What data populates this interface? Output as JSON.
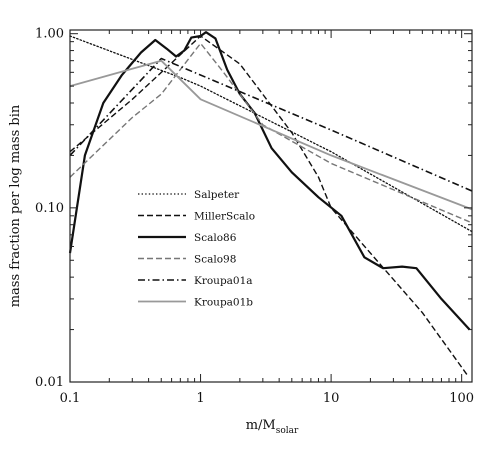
{
  "chart_data": {
    "type": "line",
    "xscale": "log",
    "yscale": "log",
    "xlim": [
      0.1,
      120
    ],
    "ylim": [
      0.01,
      1.05
    ],
    "xlabel": "m/M",
    "xlabel_sub": "solar",
    "ylabel": "mass fraction per log mass bin",
    "x_tick_labels": [
      "0.1",
      "1",
      "10",
      "100"
    ],
    "x_tick_values": [
      0.1,
      1,
      10,
      100
    ],
    "y_tick_labels": [
      "0.01",
      "0.10",
      "1.00"
    ],
    "y_tick_values": [
      0.01,
      0.1,
      1.0
    ],
    "grid": false,
    "legend_position": "lower-left",
    "series": [
      {
        "name": "Salpeter",
        "style": "dotted",
        "color": "#111111",
        "width": 1.3,
        "points": [
          [
            0.1,
            0.97
          ],
          [
            0.7,
            0.56
          ],
          [
            1,
            0.5
          ],
          [
            10,
            0.21
          ],
          [
            120,
            0.073
          ]
        ]
      },
      {
        "name": "MillerScalo",
        "style": "dashed",
        "color": "#111111",
        "width": 1.4,
        "points": [
          [
            0.1,
            0.21
          ],
          [
            0.3,
            0.42
          ],
          [
            1,
            0.97
          ],
          [
            2,
            0.67
          ],
          [
            5,
            0.27
          ],
          [
            8,
            0.15
          ],
          [
            10,
            0.1
          ],
          [
            20,
            0.055
          ],
          [
            50,
            0.025
          ],
          [
            110,
            0.011
          ]
        ]
      },
      {
        "name": "Scalo86",
        "style": "solid",
        "color": "#111111",
        "width": 2.2,
        "points": [
          [
            0.1,
            0.055
          ],
          [
            0.13,
            0.2
          ],
          [
            0.18,
            0.4
          ],
          [
            0.25,
            0.58
          ],
          [
            0.35,
            0.78
          ],
          [
            0.45,
            0.92
          ],
          [
            0.55,
            0.82
          ],
          [
            0.65,
            0.74
          ],
          [
            0.75,
            0.8
          ],
          [
            0.85,
            0.95
          ],
          [
            1.0,
            0.97
          ],
          [
            1.1,
            1.02
          ],
          [
            1.3,
            0.94
          ],
          [
            1.6,
            0.62
          ],
          [
            2.0,
            0.45
          ],
          [
            2.6,
            0.35
          ],
          [
            3.5,
            0.22
          ],
          [
            5,
            0.16
          ],
          [
            8,
            0.115
          ],
          [
            12,
            0.09
          ],
          [
            18,
            0.052
          ],
          [
            25,
            0.045
          ],
          [
            35,
            0.046
          ],
          [
            45,
            0.045
          ],
          [
            70,
            0.03
          ],
          [
            115,
            0.02
          ]
        ]
      },
      {
        "name": "Scalo98",
        "style": "dashed",
        "color": "#777777",
        "width": 1.4,
        "points": [
          [
            0.1,
            0.15
          ],
          [
            0.3,
            0.33
          ],
          [
            0.5,
            0.45
          ],
          [
            1,
            0.88
          ],
          [
            1.5,
            0.6
          ],
          [
            3,
            0.3
          ],
          [
            10,
            0.18
          ],
          [
            120,
            0.082
          ]
        ]
      },
      {
        "name": "Kroupa01a",
        "style": "dashdot",
        "color": "#111111",
        "width": 1.6,
        "points": [
          [
            0.1,
            0.2
          ],
          [
            0.5,
            0.72
          ],
          [
            10,
            0.28
          ],
          [
            120,
            0.125
          ]
        ]
      },
      {
        "name": "Kroupa01b",
        "style": "solid",
        "color": "#999999",
        "width": 1.8,
        "points": [
          [
            0.1,
            0.5
          ],
          [
            0.5,
            0.7
          ],
          [
            1,
            0.42
          ],
          [
            10,
            0.2
          ],
          [
            120,
            0.098
          ]
        ]
      }
    ]
  }
}
